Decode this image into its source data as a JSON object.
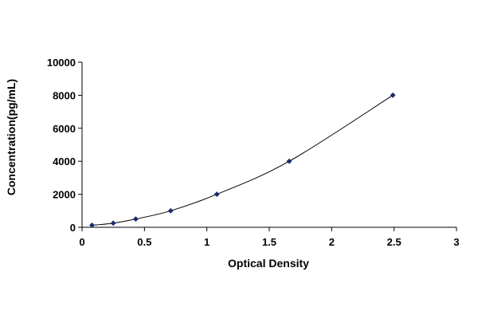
{
  "chart_data": {
    "type": "scatter",
    "title": "",
    "xlabel": "Optical Density",
    "ylabel": "Concentration(pg/mL)",
    "xlim": [
      0,
      3
    ],
    "ylim": [
      0,
      10000
    ],
    "x_ticks": [
      0,
      0.5,
      1,
      1.5,
      2,
      2.5,
      3
    ],
    "x_tick_labels": [
      "0",
      "0.5",
      "1",
      "1.5",
      "2",
      "2.5",
      "3"
    ],
    "y_ticks": [
      0,
      2000,
      4000,
      6000,
      8000,
      10000
    ],
    "y_tick_labels": [
      "0",
      "2000",
      "4000",
      "6000",
      "8000",
      "10000"
    ],
    "grid": false,
    "legend": "none",
    "series": [
      {
        "name": "",
        "marker": "diamond",
        "color": "#1f2a6b",
        "fit_line": true,
        "fit_color": "#000000",
        "points": [
          {
            "x": 0.08,
            "y": 125
          },
          {
            "x": 0.25,
            "y": 250
          },
          {
            "x": 0.43,
            "y": 500
          },
          {
            "x": 0.71,
            "y": 1000
          },
          {
            "x": 1.08,
            "y": 2000
          },
          {
            "x": 1.66,
            "y": 4000
          },
          {
            "x": 2.49,
            "y": 8000
          }
        ]
      }
    ]
  }
}
